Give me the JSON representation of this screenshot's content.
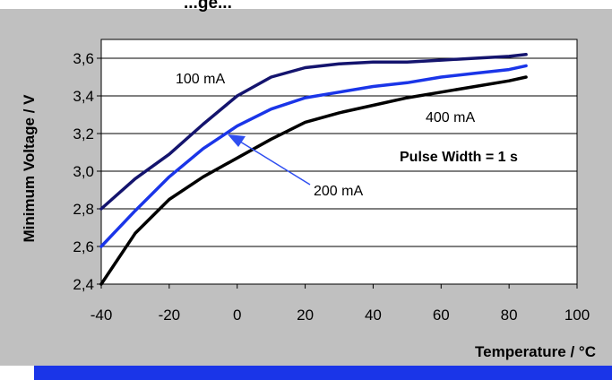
{
  "chart_data": {
    "type": "line",
    "title": "...ge...",
    "xlabel": "Temperature / °C",
    "ylabel": "Minimum Voltage / V",
    "xlim": [
      -40,
      100
    ],
    "ylim": [
      2.4,
      3.7
    ],
    "xticks": [
      -40,
      -20,
      0,
      20,
      40,
      60,
      80,
      100
    ],
    "xtick_labels": [
      "-40",
      "-20",
      "0",
      "20",
      "40",
      "60",
      "80",
      "100"
    ],
    "yticks": [
      2.4,
      2.6,
      2.8,
      3.0,
      3.2,
      3.4,
      3.6
    ],
    "ytick_labels": [
      "2,4",
      "2,6",
      "2,8",
      "3,0",
      "3,2",
      "3,4",
      "3,6"
    ],
    "grid": "horizontal",
    "series": [
      {
        "name": "100 mA",
        "color": "#14146e",
        "x": [
          -40,
          -30,
          -20,
          -10,
          0,
          10,
          20,
          30,
          40,
          50,
          60,
          70,
          80,
          85
        ],
        "y": [
          2.8,
          2.96,
          3.09,
          3.25,
          3.4,
          3.5,
          3.55,
          3.57,
          3.58,
          3.58,
          3.59,
          3.6,
          3.61,
          3.62
        ]
      },
      {
        "name": "200 mA",
        "color": "#1a35e8",
        "x": [
          -40,
          -30,
          -20,
          -10,
          0,
          10,
          20,
          30,
          40,
          50,
          60,
          70,
          80,
          85
        ],
        "y": [
          2.6,
          2.79,
          2.97,
          3.12,
          3.24,
          3.33,
          3.39,
          3.42,
          3.45,
          3.47,
          3.5,
          3.52,
          3.54,
          3.56
        ]
      },
      {
        "name": "400 mA",
        "color": "#000000",
        "x": [
          -40,
          -30,
          -20,
          -10,
          0,
          10,
          20,
          30,
          40,
          50,
          60,
          70,
          80,
          85
        ],
        "y": [
          2.4,
          2.67,
          2.85,
          2.97,
          3.07,
          3.17,
          3.26,
          3.31,
          3.35,
          3.39,
          3.42,
          3.45,
          3.48,
          3.5
        ]
      }
    ],
    "annotations": {
      "label_100": "100 mA",
      "label_200": "200 mA",
      "label_400": "400 mA",
      "pulse_width": "Pulse Width  = 1 s"
    },
    "colors": {
      "frame_bg": "#c0c0c0",
      "plot_bg": "#ffffff",
      "bottom_bar": "#1a35e8",
      "arrow": "#2f4ef0"
    }
  }
}
